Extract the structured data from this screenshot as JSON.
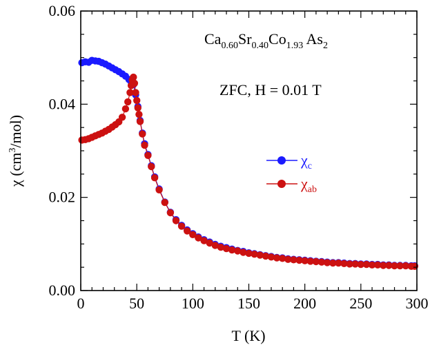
{
  "chart_data": {
    "type": "scatter",
    "title": "",
    "xlabel": "T (K)",
    "ylabel": {
      "main": "χ (cm",
      "sup": "3",
      "tail": "/mol)"
    },
    "xlim": [
      0,
      300
    ],
    "ylim": [
      0,
      0.06
    ],
    "xticks": [
      0,
      50,
      100,
      150,
      200,
      250,
      300
    ],
    "xtick_labels": [
      "0",
      "50",
      "100",
      "150",
      "200",
      "250",
      "300"
    ],
    "yticks": [
      0,
      0.02,
      0.04,
      0.06
    ],
    "ytick_labels": [
      "0.00",
      "0.02",
      "0.04",
      "0.06"
    ],
    "annotations": {
      "compound": {
        "parts": [
          {
            "t": "Ca",
            "sub": false
          },
          {
            "t": "0.60",
            "sub": true
          },
          {
            "t": "Sr",
            "sub": false
          },
          {
            "t": "0.40",
            "sub": true
          },
          {
            "t": "Co",
            "sub": false
          },
          {
            "t": "1.93",
            "sub": true
          },
          {
            "t": " As",
            "sub": false
          },
          {
            "t": "2",
            "sub": true
          }
        ]
      },
      "condition": "ZFC, H = 0.01 T"
    },
    "series": [
      {
        "name": "χc",
        "symbol": "χ",
        "subscript": "c",
        "color": "#1a1aff",
        "points": [
          [
            1,
            0.0489
          ],
          [
            4,
            0.0491
          ],
          [
            7,
            0.049
          ],
          [
            10,
            0.0494
          ],
          [
            13,
            0.0493
          ],
          [
            16,
            0.0492
          ],
          [
            19,
            0.0489
          ],
          [
            22,
            0.0486
          ],
          [
            25,
            0.0482
          ],
          [
            28,
            0.0478
          ],
          [
            31,
            0.0474
          ],
          [
            34,
            0.047
          ],
          [
            37,
            0.0465
          ],
          [
            40,
            0.046
          ],
          [
            43,
            0.0453
          ],
          [
            45,
            0.0447
          ],
          [
            47,
            0.0442
          ],
          [
            49,
            0.042
          ],
          [
            51,
            0.0395
          ],
          [
            53,
            0.0365
          ],
          [
            55,
            0.0338
          ],
          [
            57,
            0.0315
          ],
          [
            60,
            0.0292
          ],
          [
            63,
            0.0268
          ],
          [
            66,
            0.0244
          ],
          [
            70,
            0.0218
          ],
          [
            75,
            0.019
          ],
          [
            80,
            0.0168
          ],
          [
            85,
            0.0152
          ],
          [
            90,
            0.014
          ],
          [
            95,
            0.013
          ],
          [
            100,
            0.0122
          ],
          [
            105,
            0.0115
          ],
          [
            110,
            0.0109
          ],
          [
            115,
            0.0104
          ],
          [
            120,
            0.0099
          ],
          [
            125,
            0.0095
          ],
          [
            130,
            0.0092
          ],
          [
            135,
            0.0089
          ],
          [
            140,
            0.0086
          ],
          [
            145,
            0.0084
          ],
          [
            150,
            0.0081
          ],
          [
            155,
            0.0079
          ],
          [
            160,
            0.0077
          ],
          [
            165,
            0.0075
          ],
          [
            170,
            0.0073
          ],
          [
            175,
            0.0071
          ],
          [
            180,
            0.007
          ],
          [
            185,
            0.0068
          ],
          [
            190,
            0.0067
          ],
          [
            195,
            0.0066
          ],
          [
            200,
            0.0065
          ],
          [
            205,
            0.0064
          ],
          [
            210,
            0.0063
          ],
          [
            215,
            0.0062
          ],
          [
            220,
            0.0061
          ],
          [
            225,
            0.006
          ],
          [
            230,
            0.006
          ],
          [
            235,
            0.0059
          ],
          [
            240,
            0.0058
          ],
          [
            245,
            0.0058
          ],
          [
            250,
            0.0057
          ],
          [
            255,
            0.0057
          ],
          [
            260,
            0.0056
          ],
          [
            265,
            0.0056
          ],
          [
            270,
            0.0055
          ],
          [
            275,
            0.0055
          ],
          [
            280,
            0.0054
          ],
          [
            285,
            0.0054
          ],
          [
            290,
            0.0054
          ],
          [
            295,
            0.0053
          ],
          [
            298,
            0.0053
          ]
        ]
      },
      {
        "name": "χab",
        "symbol": "χ",
        "subscript": "ab",
        "color": "#cc1111",
        "points": [
          [
            1,
            0.0323
          ],
          [
            4,
            0.0324
          ],
          [
            7,
            0.0326
          ],
          [
            10,
            0.0329
          ],
          [
            13,
            0.0332
          ],
          [
            16,
            0.0335
          ],
          [
            19,
            0.0338
          ],
          [
            22,
            0.0342
          ],
          [
            25,
            0.0346
          ],
          [
            28,
            0.0351
          ],
          [
            31,
            0.0356
          ],
          [
            34,
            0.0362
          ],
          [
            37,
            0.0372
          ],
          [
            40,
            0.039
          ],
          [
            42,
            0.0405
          ],
          [
            44,
            0.0425
          ],
          [
            45,
            0.044
          ],
          [
            46,
            0.0452
          ],
          [
            47,
            0.0458
          ],
          [
            48,
            0.0445
          ],
          [
            49,
            0.0425
          ],
          [
            50,
            0.0408
          ],
          [
            51,
            0.0392
          ],
          [
            52,
            0.0378
          ],
          [
            53,
            0.0363
          ],
          [
            55,
            0.0336
          ],
          [
            57,
            0.0312
          ],
          [
            60,
            0.029
          ],
          [
            63,
            0.0266
          ],
          [
            66,
            0.0242
          ],
          [
            70,
            0.0216
          ],
          [
            75,
            0.0189
          ],
          [
            80,
            0.0167
          ],
          [
            85,
            0.015
          ],
          [
            90,
            0.0138
          ],
          [
            95,
            0.0128
          ],
          [
            100,
            0.012
          ],
          [
            105,
            0.0113
          ],
          [
            110,
            0.0107
          ],
          [
            115,
            0.0102
          ],
          [
            120,
            0.0097
          ],
          [
            125,
            0.0093
          ],
          [
            130,
            0.009
          ],
          [
            135,
            0.0087
          ],
          [
            140,
            0.0085
          ],
          [
            145,
            0.0082
          ],
          [
            150,
            0.008
          ],
          [
            155,
            0.0078
          ],
          [
            160,
            0.0076
          ],
          [
            165,
            0.0074
          ],
          [
            170,
            0.0072
          ],
          [
            175,
            0.007
          ],
          [
            180,
            0.0069
          ],
          [
            185,
            0.0067
          ],
          [
            190,
            0.0066
          ],
          [
            195,
            0.0065
          ],
          [
            200,
            0.0064
          ],
          [
            205,
            0.0063
          ],
          [
            210,
            0.0062
          ],
          [
            215,
            0.0061
          ],
          [
            220,
            0.006
          ],
          [
            225,
            0.0059
          ],
          [
            230,
            0.0059
          ],
          [
            235,
            0.0058
          ],
          [
            240,
            0.0057
          ],
          [
            245,
            0.0057
          ],
          [
            250,
            0.0056
          ],
          [
            255,
            0.0056
          ],
          [
            260,
            0.0055
          ],
          [
            265,
            0.0055
          ],
          [
            270,
            0.0054
          ],
          [
            275,
            0.0054
          ],
          [
            280,
            0.0053
          ],
          [
            285,
            0.0053
          ],
          [
            290,
            0.0053
          ],
          [
            295,
            0.0052
          ],
          [
            298,
            0.0052
          ]
        ]
      }
    ],
    "legend_position": "middle-right"
  }
}
